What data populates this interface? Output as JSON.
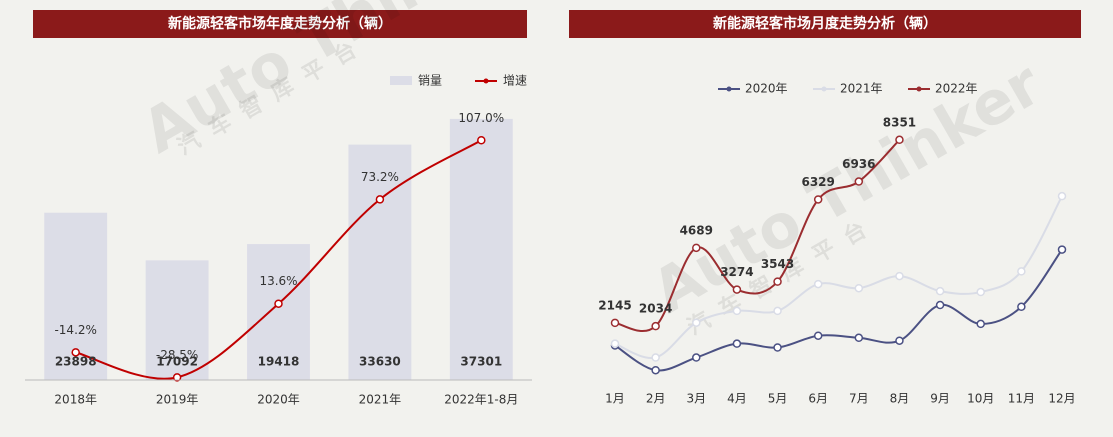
{
  "watermark": "Auto Thinker",
  "watermark_sub": "汽车智库平台",
  "chart_data": [
    {
      "type": "bar",
      "title": "新能源轻客市场年度走势分析（辆）",
      "categories": [
        "2018年",
        "2019年",
        "2020年",
        "2021年",
        "2022年1-8月"
      ],
      "series": [
        {
          "name": "销量",
          "type": "bar",
          "color": "#dcdde7",
          "values": [
            23898,
            17092,
            19418,
            33630,
            37301
          ]
        },
        {
          "name": "增速",
          "type": "line",
          "axis": "y2",
          "color": "#c00000",
          "values": [
            -14.2,
            -28.5,
            13.6,
            73.2,
            107.0
          ],
          "value_labels": [
            "-14.2%",
            "-28.5%",
            "13.6%",
            "73.2%",
            "107.0%"
          ]
        }
      ],
      "ylim": [
        0,
        40000
      ],
      "y2lim": [
        -30,
        130
      ],
      "legend": "top-right"
    },
    {
      "type": "line",
      "title": "新能源轻客市场月度走势分析（辆）",
      "categories": [
        "1月",
        "2月",
        "3月",
        "4月",
        "5月",
        "6月",
        "7月",
        "8月",
        "9月",
        "10月",
        "11月",
        "12月"
      ],
      "series": [
        {
          "name": "2020年",
          "color": "#4b5183",
          "values": [
            1380,
            540,
            970,
            1440,
            1310,
            1710,
            1640,
            1540,
            2750,
            2110,
            2690,
            4630
          ]
        },
        {
          "name": "2021年",
          "color": "#d9dce6",
          "values": [
            1440,
            970,
            2150,
            2550,
            2550,
            3460,
            3320,
            3730,
            3220,
            3190,
            3890,
            6440
          ]
        },
        {
          "name": "2022年",
          "color": "#9b2d30",
          "data_labels": true,
          "values": [
            2145,
            2034,
            4689,
            3274,
            3543,
            6329,
            6936,
            8351,
            null,
            null,
            null,
            null
          ]
        }
      ],
      "ylim": [
        -300,
        9700
      ],
      "legend": "top"
    }
  ]
}
